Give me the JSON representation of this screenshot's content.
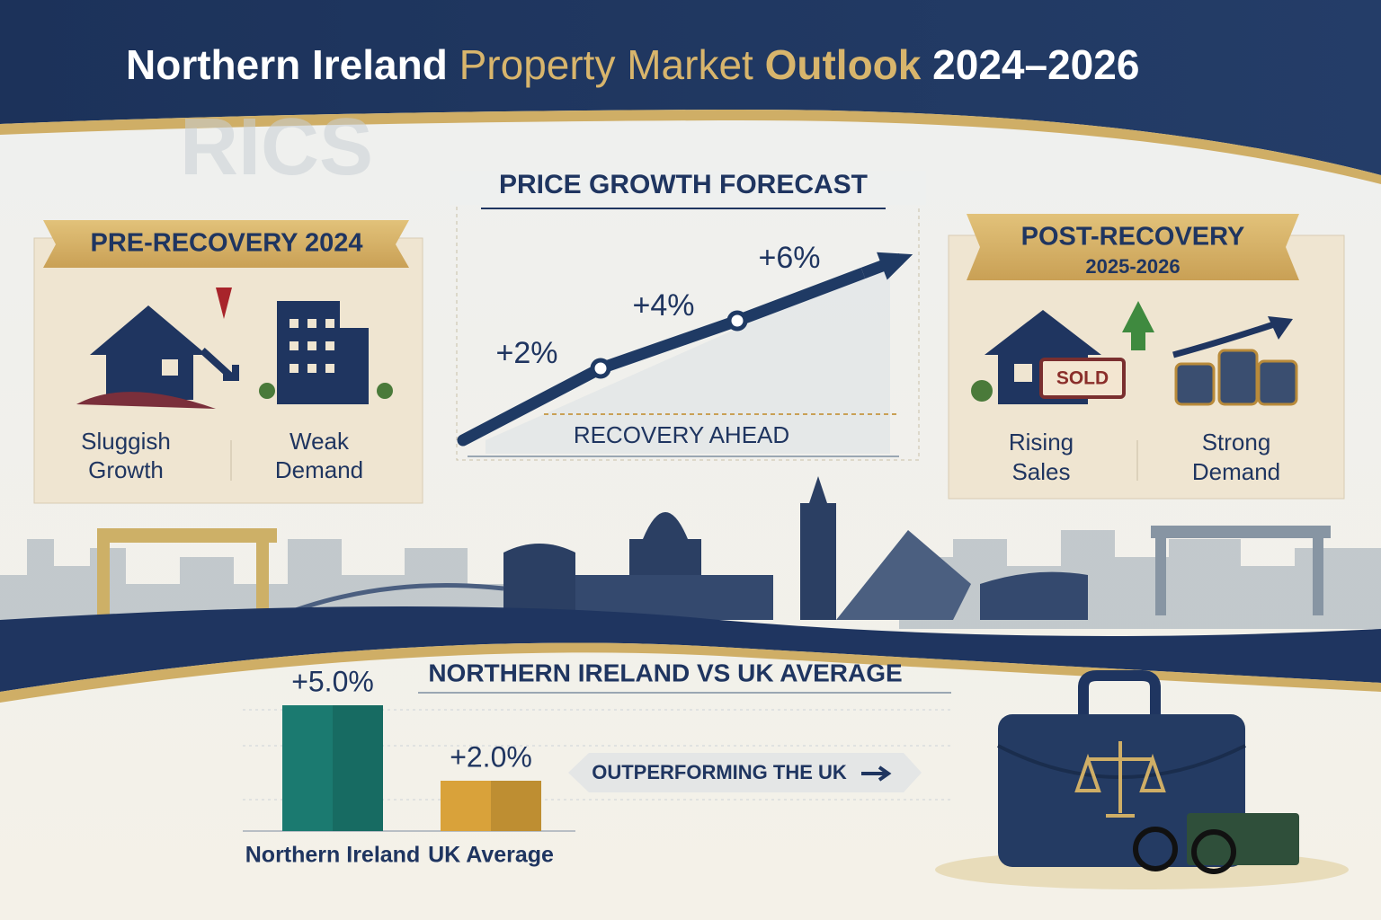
{
  "header": {
    "title_parts": [
      "Northern Ireland",
      "Property Market",
      "Outlook",
      "2024–2026"
    ],
    "watermark": "RICS"
  },
  "pre_recovery": {
    "heading": "PRE-RECOVERY 2024",
    "items": [
      [
        "Sluggish",
        "Growth"
      ],
      [
        "Weak",
        "Demand"
      ]
    ]
  },
  "post_recovery": {
    "heading": "POST-RECOVERY",
    "years": "2025-2026",
    "sign": "SOLD",
    "items": [
      [
        "Rising",
        "Sales"
      ],
      [
        "Strong",
        "Demand"
      ]
    ]
  },
  "chart_data": [
    {
      "type": "line",
      "title": "PRICE GROWTH FORECAST",
      "values": [
        2,
        4,
        6
      ],
      "value_labels": [
        "+2%",
        "+4%",
        "+6%"
      ],
      "annotation": "RECOVERY AHEAD",
      "color": "#1f3a64"
    },
    {
      "type": "bar",
      "title": "NORTHERN IRELAND VS UK AVERAGE",
      "categories": [
        "Northern Ireland",
        "UK Average"
      ],
      "values": [
        5.0,
        2.0
      ],
      "value_labels": [
        "+5.0%",
        "+2.0%"
      ],
      "colors": [
        "#1b7a70",
        "#d9a23a"
      ],
      "annotation": "OUTPERFORMING THE UK"
    }
  ]
}
